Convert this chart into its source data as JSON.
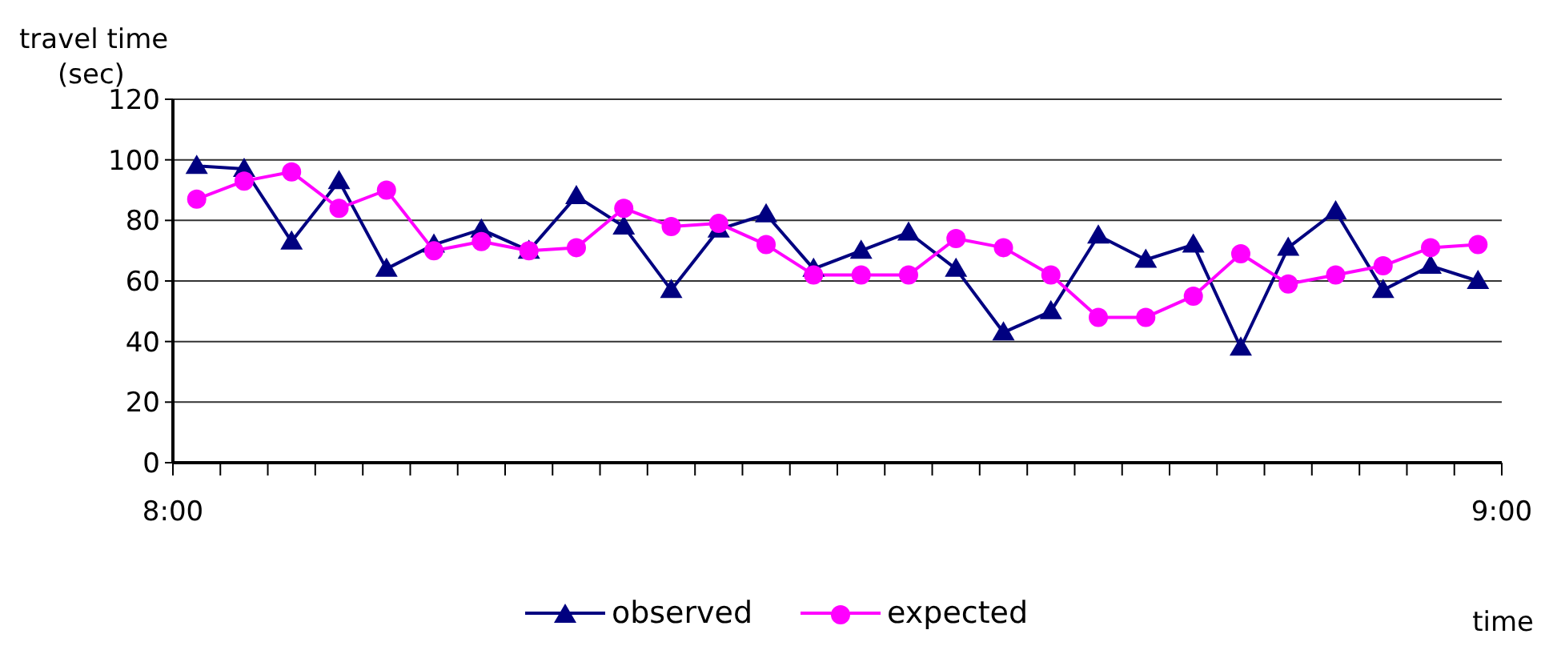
{
  "chart_data": {
    "type": "line",
    "ylabel": "travel time\n(sec)",
    "xlabel": "time",
    "x": [
      8.0179,
      8.0536,
      8.0893,
      8.125,
      8.1607,
      8.1964,
      8.2321,
      8.2679,
      8.3036,
      8.3393,
      8.375,
      8.4107,
      8.4464,
      8.4821,
      8.5179,
      8.5536,
      8.5893,
      8.625,
      8.6607,
      8.6964,
      8.7321,
      8.7679,
      8.8036,
      8.8393,
      8.875,
      8.9107,
      8.9464,
      8.9821
    ],
    "series": [
      {
        "name": "observed",
        "color": "#000080",
        "marker": "triangle",
        "values": [
          98,
          97,
          73,
          93,
          64,
          72,
          77,
          70,
          88,
          78,
          57,
          77,
          82,
          64,
          70,
          76,
          64,
          43,
          50,
          75,
          67,
          72,
          38,
          71,
          83,
          57,
          65,
          60
        ]
      },
      {
        "name": "expected",
        "color": "#ff00ff",
        "marker": "circle",
        "values": [
          87,
          93,
          96,
          84,
          90,
          70,
          73,
          70,
          71,
          84,
          78,
          79,
          72,
          62,
          62,
          62,
          74,
          71,
          62,
          48,
          48,
          55,
          69,
          59,
          62,
          65,
          71,
          72
        ]
      }
    ],
    "xlim": [
      8,
      9
    ],
    "xticks": [
      {
        "value": 8,
        "label": "8:00"
      },
      {
        "value": 8.0357,
        "label": null
      },
      {
        "value": 8.0714,
        "label": null
      },
      {
        "value": 8.1071,
        "label": null
      },
      {
        "value": 8.1429,
        "label": null
      },
      {
        "value": 8.1786,
        "label": null
      },
      {
        "value": 8.2143,
        "label": null
      },
      {
        "value": 8.25,
        "label": null
      },
      {
        "value": 8.2857,
        "label": null
      },
      {
        "value": 8.3214,
        "label": null
      },
      {
        "value": 8.3571,
        "label": null
      },
      {
        "value": 8.3929,
        "label": null
      },
      {
        "value": 8.4286,
        "label": null
      },
      {
        "value": 8.4643,
        "label": null
      },
      {
        "value": 8.5,
        "label": null
      },
      {
        "value": 8.5357,
        "label": null
      },
      {
        "value": 8.5714,
        "label": null
      },
      {
        "value": 8.6071,
        "label": null
      },
      {
        "value": 8.6429,
        "label": null
      },
      {
        "value": 8.6786,
        "label": null
      },
      {
        "value": 8.7143,
        "label": null
      },
      {
        "value": 8.75,
        "label": null
      },
      {
        "value": 8.7857,
        "label": null
      },
      {
        "value": 8.8214,
        "label": null
      },
      {
        "value": 8.8571,
        "label": null
      },
      {
        "value": 8.8929,
        "label": null
      },
      {
        "value": 8.9286,
        "label": null
      },
      {
        "value": 8.9643,
        "label": null
      },
      {
        "value": 9,
        "label": "9:00"
      }
    ],
    "ylim": [
      0,
      120
    ],
    "yticks": [
      0,
      20,
      40,
      60,
      80,
      100,
      120
    ],
    "grid": "y",
    "legend": "bottom",
    "line_style": "solid"
  }
}
